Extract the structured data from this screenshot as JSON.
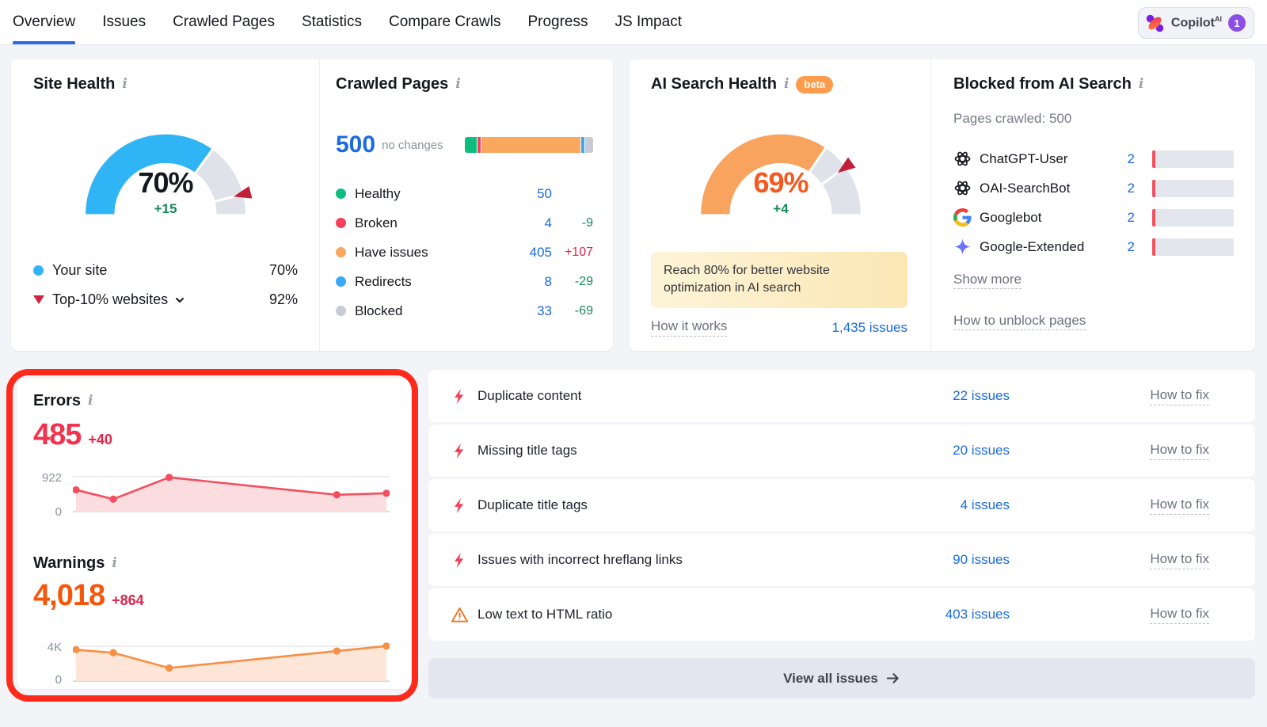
{
  "nav": {
    "items": [
      "Overview",
      "Issues",
      "Crawled Pages",
      "Statistics",
      "Compare Crawls",
      "Progress",
      "JS Impact"
    ],
    "copilot": {
      "label": "Copilot",
      "sup": "AI",
      "badge": "1"
    }
  },
  "site_health": {
    "title": "Site Health",
    "gauge_percent": "70%",
    "gauge_delta": "+15",
    "legend": [
      {
        "label": "Your site",
        "value": "70%"
      },
      {
        "label": "Top-10% websites",
        "value": "92%"
      }
    ]
  },
  "crawled_pages": {
    "title": "Crawled Pages",
    "total": "500",
    "total_note": "no changes",
    "rows": [
      {
        "label": "Healthy",
        "value": "50",
        "delta": "",
        "delta_color": "#168a5a",
        "color": "#0ebd7e"
      },
      {
        "label": "Broken",
        "value": "4",
        "delta": "-9",
        "delta_color": "#168a5a",
        "color": "#f4415a"
      },
      {
        "label": "Have issues",
        "value": "405",
        "delta": "+107",
        "delta_color": "#e0244a",
        "color": "#faa75f"
      },
      {
        "label": "Redirects",
        "value": "8",
        "delta": "-29",
        "delta_color": "#168a5a",
        "color": "#38a9f8"
      },
      {
        "label": "Blocked",
        "value": "33",
        "delta": "-69",
        "delta_color": "#168a5a",
        "color": "#c7cbd4"
      }
    ]
  },
  "ai_search_health": {
    "title": "AI Search Health",
    "beta": "beta",
    "gauge_percent": "69%",
    "gauge_delta": "+4",
    "tip": "Reach 80% for better website optimization in AI search",
    "how_it_works": "How it works",
    "issues_link": "1,435 issues"
  },
  "blocked_ai": {
    "title": "Blocked from AI Search",
    "subtitle": "Pages crawled: 500",
    "bots": [
      {
        "name": "ChatGPT-User",
        "count": "2"
      },
      {
        "name": "OAI-SearchBot",
        "count": "2"
      },
      {
        "name": "Googlebot",
        "count": "2"
      },
      {
        "name": "Google-Extended",
        "count": "2"
      }
    ],
    "show_more": "Show more",
    "unblock_link": "How to unblock pages"
  },
  "errors": {
    "title": "Errors",
    "value": "485",
    "delta": "+40",
    "y_top": "922",
    "y_zero": "0",
    "value_color": "#f2334e"
  },
  "warnings": {
    "title": "Warnings",
    "value": "4,018",
    "delta": "+864",
    "y_top": "4K",
    "y_zero": "0",
    "value_color": "#f4560c"
  },
  "issues": {
    "rows": [
      {
        "icon": "error-bolt-icon",
        "title": "Duplicate content",
        "count": "22 issues",
        "fix": "How to fix"
      },
      {
        "icon": "error-bolt-icon",
        "title": "Missing title tags",
        "count": "20 issues",
        "fix": "How to fix"
      },
      {
        "icon": "error-bolt-icon",
        "title": "Duplicate title tags",
        "count": "4 issues",
        "fix": "How to fix"
      },
      {
        "icon": "error-bolt-icon",
        "title": "Issues with incorrect hreflang links",
        "count": "90 issues",
        "fix": "How to fix"
      },
      {
        "icon": "warning-triangle-icon",
        "title": "Low text to HTML ratio",
        "count": "403 issues",
        "fix": "How to fix"
      }
    ],
    "view_all": "View all issues"
  },
  "chart_data": [
    {
      "name": "site-health-gauge",
      "type": "gauge",
      "value": 70,
      "max": 100,
      "delta": 15,
      "benchmark_marker": 92,
      "color": "#2fb5f5",
      "track_color": "#e0e2ea",
      "marker_color": "#c21f38"
    },
    {
      "name": "ai-search-health-gauge",
      "type": "gauge",
      "value": 69,
      "max": 100,
      "delta": 4,
      "benchmark_marker": 80,
      "color": "#f9a45e",
      "track_color": "#e0e2ea",
      "marker_color": "#c21f38"
    },
    {
      "name": "crawled-pages-bar",
      "type": "bar",
      "stacked": true,
      "total": 500,
      "categories": [
        "Healthy",
        "Broken",
        "Have issues",
        "Redirects",
        "Blocked"
      ],
      "values": [
        50,
        4,
        405,
        8,
        33
      ],
      "colors": [
        "#0ebd7e",
        "#f4415a",
        "#faa75f",
        "#38a9f8",
        "#c7cbd4"
      ]
    },
    {
      "name": "errors-trend",
      "type": "line",
      "title": "Errors",
      "x_rel": [
        0,
        0.12,
        0.3,
        0.84,
        1
      ],
      "values": [
        575,
        330,
        905,
        445,
        485
      ],
      "ylim": [
        0,
        922
      ],
      "ytick_labels": [
        "922",
        "0"
      ],
      "grid": true,
      "color": "#f44e5e",
      "fill": "#fbdde0"
    },
    {
      "name": "warnings-trend",
      "type": "line",
      "title": "Warnings",
      "x_rel": [
        0,
        0.12,
        0.3,
        0.84,
        1
      ],
      "values": [
        3600,
        3250,
        1500,
        3450,
        4018
      ],
      "ylim": [
        0,
        4000
      ],
      "ytick_labels": [
        "4K",
        "0"
      ],
      "grid": true,
      "color": "#f78f45",
      "fill": "#fde6d8"
    }
  ]
}
